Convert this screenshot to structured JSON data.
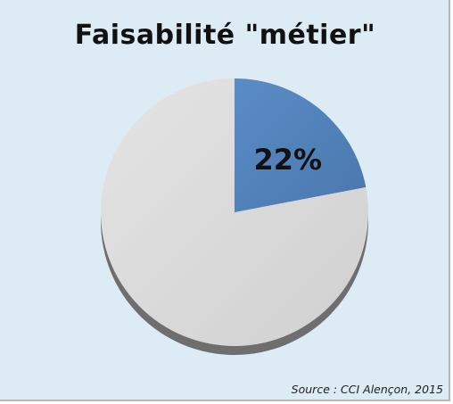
{
  "chart_data": {
    "type": "pie",
    "title": "Faisabilité \"métier\"",
    "slices": [
      {
        "value": 22,
        "label": "22%",
        "color": "#4f81bd"
      },
      {
        "value": 78,
        "label": "",
        "color": "#d9d9d9"
      }
    ],
    "source": "Source : CCI Alençon, 2015",
    "background": "#dcebf4"
  }
}
